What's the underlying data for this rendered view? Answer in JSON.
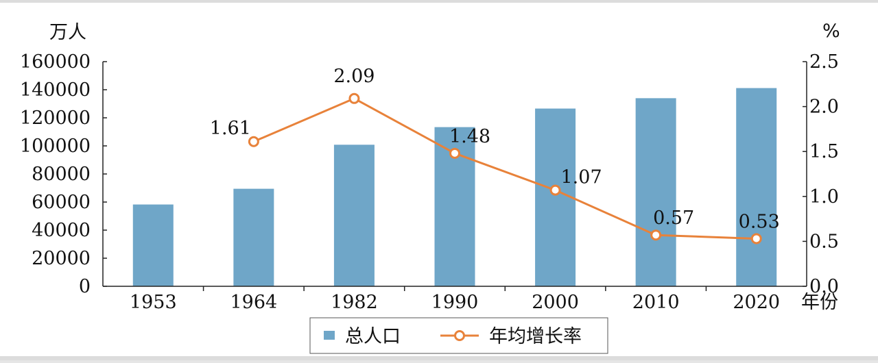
{
  "chart_data": {
    "type": "bar+line",
    "categories": [
      "1953",
      "1964",
      "1982",
      "1990",
      "2000",
      "2010",
      "2020"
    ],
    "x_unit": "年份",
    "y_left_unit": "万人",
    "y_right_unit": "%",
    "y_left_ticks": [
      "160000",
      "140000",
      "120000",
      "100000",
      "80000",
      "60000",
      "40000",
      "20000",
      "0"
    ],
    "y_right_ticks": [
      "2.5",
      "2.0",
      "1.5",
      "1.0",
      "0.5",
      "0.0"
    ],
    "ylim_left": [
      0,
      160000
    ],
    "ylim_right": [
      0,
      2.5
    ],
    "grid": false,
    "legend_position": "bottom",
    "series": [
      {
        "name": "总人口",
        "type": "bar",
        "axis": "left",
        "color": "#6fa6c8",
        "values": [
          58260,
          69458,
          100818,
          113368,
          126583,
          133972,
          141178
        ]
      },
      {
        "name": "年均增长率",
        "type": "line",
        "axis": "right",
        "color": "#e8823a",
        "values": [
          null,
          1.61,
          2.09,
          1.48,
          1.07,
          0.57,
          0.53
        ],
        "labels": [
          "",
          "1.61",
          "2.09",
          "1.48",
          "1.07",
          "0.57",
          "0.53"
        ]
      }
    ]
  }
}
